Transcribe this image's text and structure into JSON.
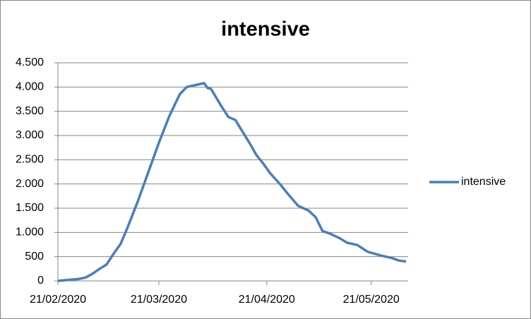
{
  "chart_data": {
    "type": "line",
    "title": "intensive",
    "x": [
      "2020-02-21",
      "2020-02-24",
      "2020-02-27",
      "2020-02-29",
      "2020-03-02",
      "2020-03-04",
      "2020-03-06",
      "2020-03-08",
      "2020-03-10",
      "2020-03-12",
      "2020-03-15",
      "2020-03-18",
      "2020-03-21",
      "2020-03-24",
      "2020-03-27",
      "2020-03-29",
      "2020-04-01",
      "2020-04-03",
      "2020-04-04",
      "2020-04-05",
      "2020-04-08",
      "2020-04-10",
      "2020-04-12",
      "2020-04-13",
      "2020-04-16",
      "2020-04-18",
      "2020-04-20",
      "2020-04-22",
      "2020-04-25",
      "2020-04-27",
      "2020-04-30",
      "2020-05-03",
      "2020-05-05",
      "2020-05-07",
      "2020-05-09",
      "2020-05-12",
      "2020-05-14",
      "2020-05-17",
      "2020-05-20",
      "2020-05-24",
      "2020-05-27",
      "2020-05-29",
      "2020-05-31"
    ],
    "series": [
      {
        "name": "intensive",
        "color": "#4a7ebb",
        "values": [
          0,
          20,
          40,
          70,
          150,
          250,
          340,
          560,
          760,
          1100,
          1650,
          2250,
          2850,
          3400,
          3850,
          4000,
          4050,
          4080,
          3980,
          3960,
          3600,
          3380,
          3320,
          3200,
          2850,
          2600,
          2420,
          2220,
          1980,
          1800,
          1550,
          1450,
          1320,
          1030,
          980,
          880,
          790,
          740,
          600,
          520,
          470,
          420,
          400
        ]
      }
    ],
    "xlim": [
      "2020-02-21",
      "2020-05-31"
    ],
    "xticks": [
      {
        "value": "2020-02-21",
        "label": "21/02/2020"
      },
      {
        "value": "2020-03-21",
        "label": "21/03/2020"
      },
      {
        "value": "2020-04-21",
        "label": "21/04/2020"
      },
      {
        "value": "2020-05-21",
        "label": "21/05/2020"
      }
    ],
    "ylim": [
      0,
      4500
    ],
    "yticks": [
      0,
      500,
      {
        "value": 1000,
        "label": "1.000"
      },
      {
        "value": 1500,
        "label": "1.500"
      },
      {
        "value": 2000,
        "label": "2.000"
      },
      {
        "value": 2500,
        "label": "2.500"
      },
      {
        "value": 3000,
        "label": "3.000"
      },
      {
        "value": 3500,
        "label": "3.500"
      },
      {
        "value": 4000,
        "label": "4.000"
      },
      {
        "value": 4500,
        "label": "4.500"
      }
    ],
    "grid": true,
    "legend": "right"
  }
}
